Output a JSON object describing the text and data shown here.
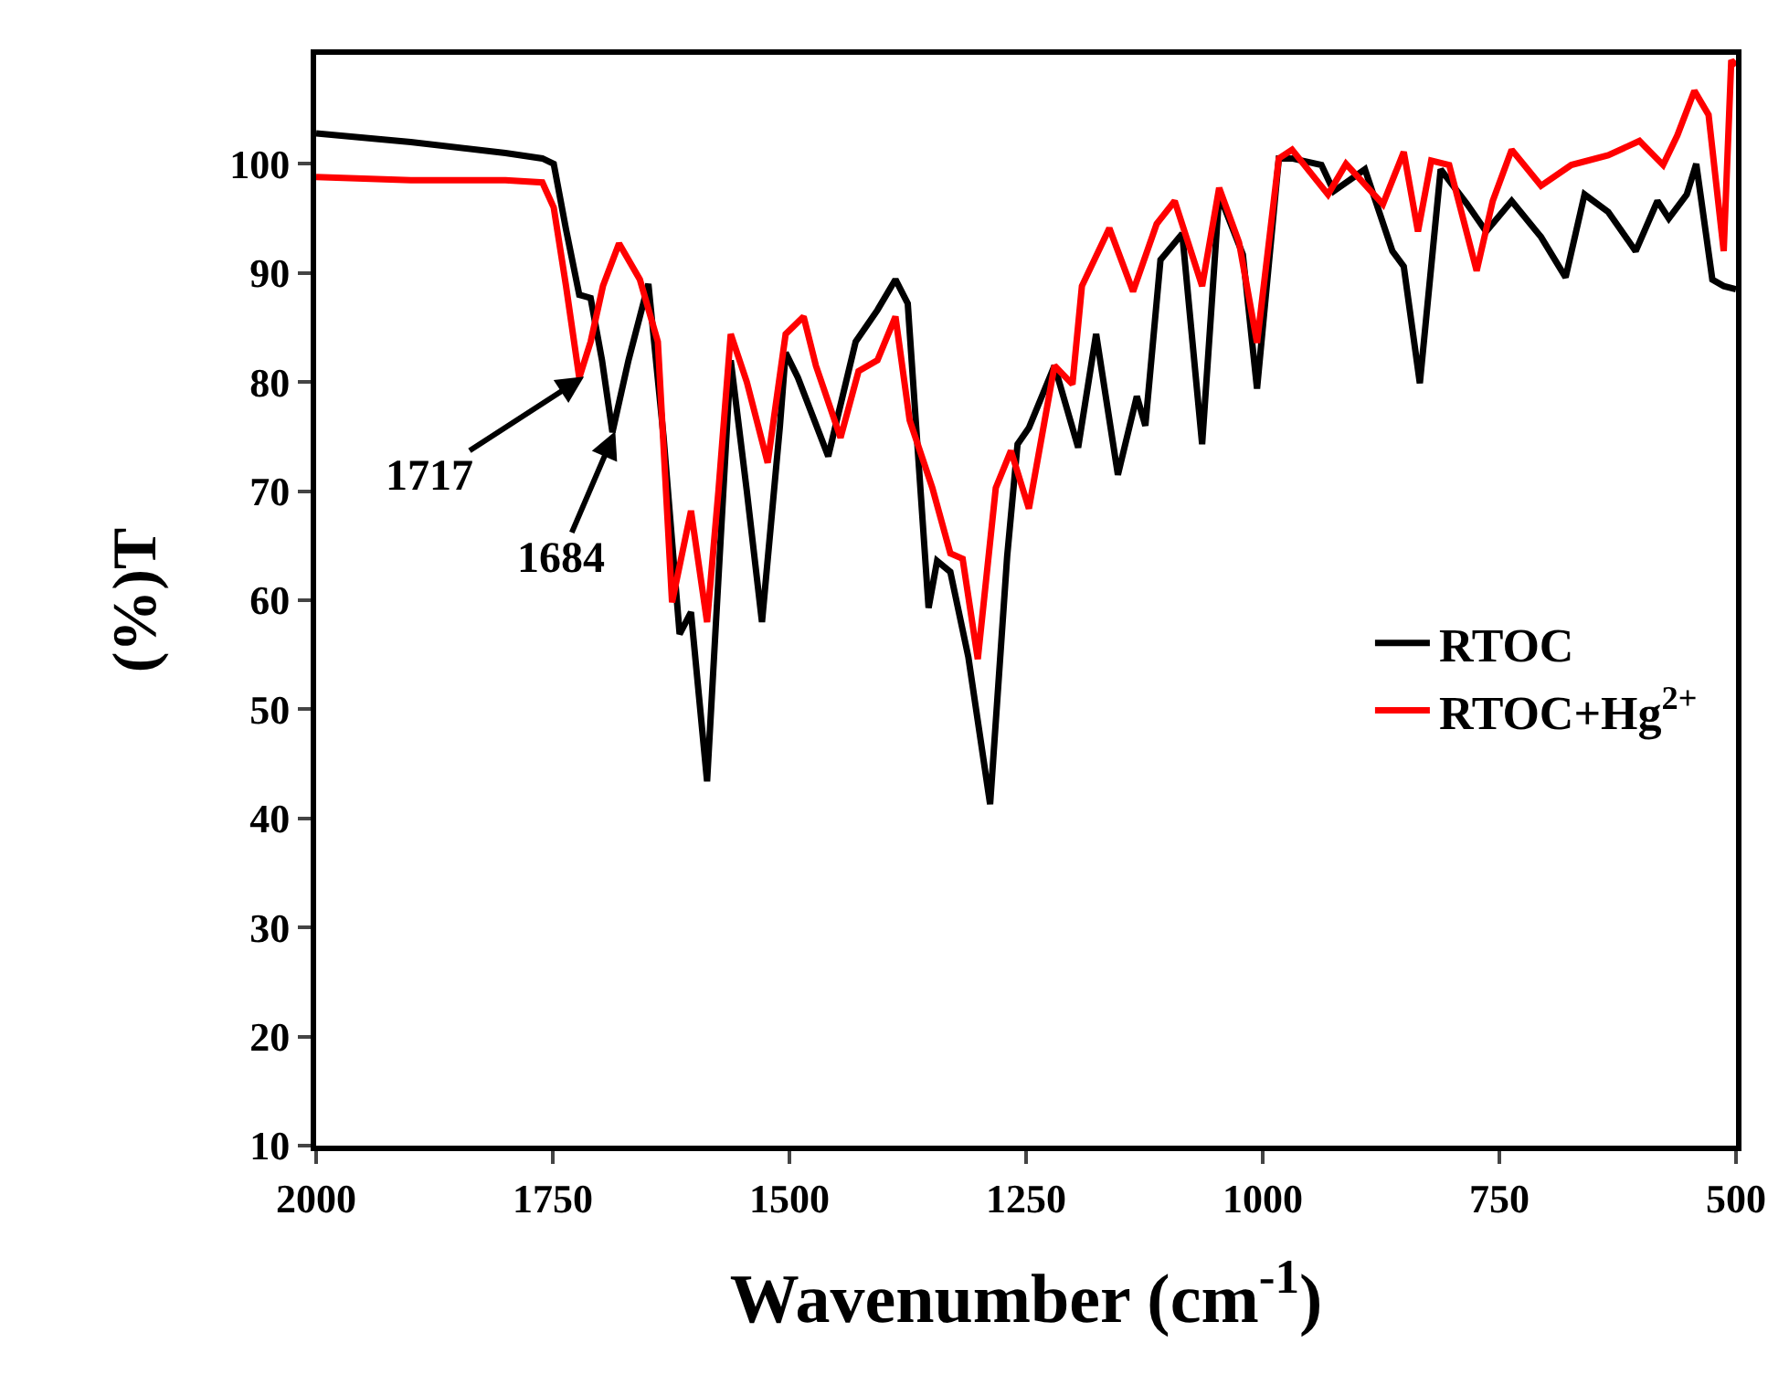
{
  "chart_data": {
    "type": "line",
    "xlabel": "Wavenumber (cm$^{-1}$)",
    "ylabel": "(%)T",
    "xlim": [
      2000,
      500
    ],
    "xticks": [
      2000,
      1750,
      1500,
      1250,
      1000,
      750,
      500
    ],
    "ylim": [
      10,
      110
    ],
    "yticks": [
      10,
      20,
      30,
      40,
      50,
      60,
      70,
      80,
      90,
      100
    ],
    "grid": false,
    "legend": "right",
    "marker": "none",
    "line_style": "solid",
    "annotations": [
      {
        "text": "1717",
        "x": 1717,
        "y": 80.5
      },
      {
        "text": "1684",
        "x": 1684,
        "y": 75.5
      }
    ],
    "series": [
      {
        "name": "RTOC",
        "color": "#000000",
        "x": [
          2000,
          1900,
          1800,
          1761,
          1749,
          1736,
          1722,
          1710,
          1698,
          1687,
          1670,
          1649,
          1633,
          1616,
          1604,
          1587,
          1575,
          1562,
          1545,
          1529,
          1510,
          1504,
          1491,
          1459,
          1430,
          1407,
          1388,
          1375,
          1353,
          1344,
          1330,
          1311,
          1288,
          1270,
          1259,
          1247,
          1220,
          1195,
          1176,
          1153,
          1133,
          1124,
          1108,
          1085,
          1064,
          1046,
          1021,
          1006,
          983,
          969,
          938,
          925,
          892,
          863,
          851,
          834,
          812,
          784,
          764,
          737,
          706,
          680,
          660,
          635,
          606,
          583,
          571,
          552,
          542,
          525,
          513,
          500
        ],
        "values": [
          102.8,
          102,
          101,
          100.5,
          100,
          94,
          88,
          87.7,
          82,
          75.4,
          82,
          89,
          75,
          56.9,
          58.9,
          43.4,
          62,
          82,
          70,
          58,
          76,
          82.7,
          80.4,
          73.2,
          83.7,
          86.6,
          89.4,
          87.2,
          59.3,
          63.6,
          62.6,
          54.8,
          41.3,
          64,
          74.3,
          75.8,
          81.5,
          74,
          84.4,
          71.5,
          78.7,
          76,
          91.2,
          93.6,
          74.3,
          97.2,
          91.7,
          79.4,
          100.5,
          100.5,
          99.9,
          97.5,
          99.5,
          92,
          90.6,
          79.9,
          99.5,
          96.3,
          93.8,
          96.6,
          93.3,
          89.6,
          97.2,
          95.6,
          92,
          96.6,
          95,
          97.2,
          100,
          89.4,
          88.8,
          88.5
        ]
      },
      {
        "name": "RTOC+Hg$^{2+}$",
        "color": "#ff0000",
        "x": [
          2000,
          1900,
          1800,
          1761,
          1749,
          1736,
          1722,
          1710,
          1697,
          1680,
          1658,
          1639,
          1624,
          1604,
          1587,
          1575,
          1562,
          1545,
          1523,
          1504,
          1485,
          1472,
          1446,
          1427,
          1407,
          1388,
          1373,
          1349,
          1330,
          1317,
          1301,
          1282,
          1266,
          1247,
          1220,
          1201,
          1191,
          1162,
          1137,
          1112,
          1093,
          1064,
          1046,
          1025,
          1006,
          983,
          969,
          931,
          912,
          873,
          851,
          836,
          822,
          803,
          774,
          757,
          737,
          706,
          674,
          635,
          602,
          577,
          562,
          544,
          529,
          513,
          505,
          500
        ],
        "values": [
          98.8,
          98.5,
          98.5,
          98.3,
          96,
          88.8,
          80.4,
          83.7,
          88.8,
          92.7,
          89.4,
          83.7,
          59.8,
          68.2,
          58,
          70,
          84.4,
          80,
          72.6,
          84.4,
          86,
          81.5,
          74.9,
          81,
          82,
          86,
          76.5,
          70.3,
          64.3,
          63.8,
          54.6,
          70.3,
          73.7,
          68.4,
          81.5,
          79.8,
          88.8,
          94.1,
          88.3,
          94.5,
          96.6,
          88.8,
          97.8,
          92.8,
          83.6,
          100.5,
          101.3,
          97.2,
          100,
          96.3,
          101.1,
          93.8,
          100.3,
          99.9,
          90.2,
          96.6,
          101.3,
          98,
          99.9,
          100.8,
          102.1,
          99.9,
          102.6,
          106.7,
          104.5,
          92,
          109.5,
          109
        ]
      }
    ]
  }
}
